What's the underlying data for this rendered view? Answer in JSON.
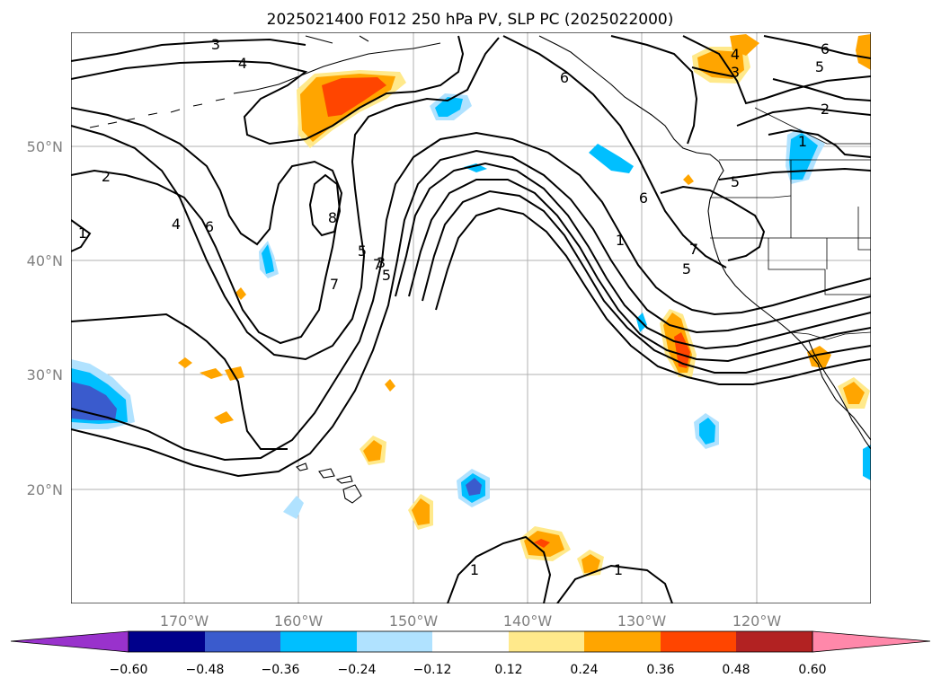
{
  "title": "2025021400 F012 250 hPa PV, SLP PC (2025022000)",
  "map": {
    "lat_labels": [
      "50°N",
      "40°N",
      "30°N",
      "20°N"
    ],
    "lon_labels": [
      "170°W",
      "160°W",
      "150°W",
      "140°W",
      "130°W",
      "120°W"
    ],
    "grid_lats": [
      50,
      40,
      30,
      20
    ],
    "grid_lons": [
      -170,
      -160,
      -150,
      -140,
      -130,
      -120
    ],
    "extent": {
      "lon_min": -180,
      "lon_max": -110,
      "lat_min": 10,
      "lat_max": 60
    }
  },
  "contour_labels": [
    "3",
    "4",
    "6",
    "2",
    "1",
    "7",
    "5",
    "8",
    "4",
    "6",
    "7",
    "5",
    "3",
    "2",
    "6",
    "1",
    "7",
    "5",
    "6",
    "5",
    "4",
    "3",
    "2",
    "1",
    "5",
    "1",
    "1"
  ],
  "colorbar": {
    "ticks": [
      "−0.60",
      "−0.48",
      "−0.36",
      "−0.24",
      "−0.12",
      "0.12",
      "0.24",
      "0.36",
      "0.48",
      "0.60"
    ],
    "colors": [
      "#9932cc",
      "#00008b",
      "#3a5bcd",
      "#00bfff",
      "#b0e2ff",
      "#ffffff",
      "#ffe98b",
      "#ffa500",
      "#ff4500",
      "#b22222",
      "#ff88aa"
    ],
    "colors_order": "under, bins…, over"
  }
}
